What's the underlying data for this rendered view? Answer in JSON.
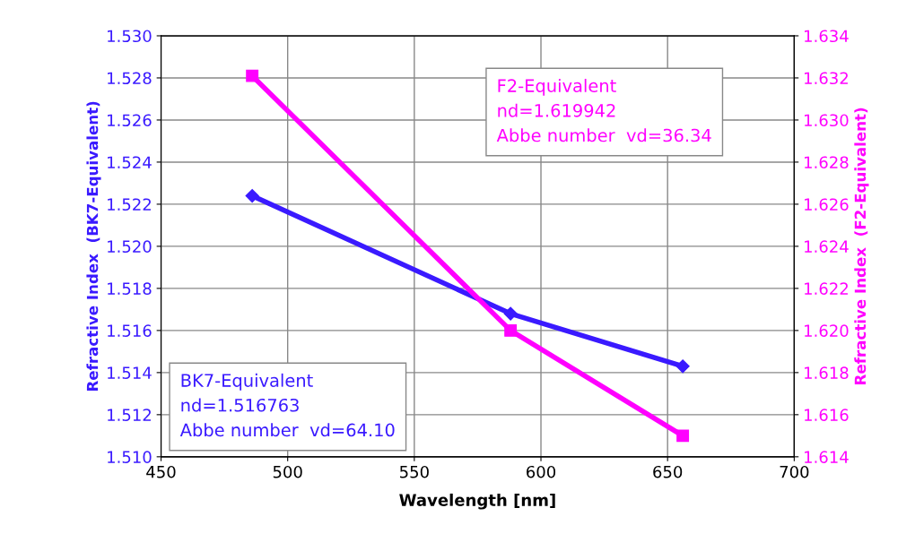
{
  "chart_data": {
    "type": "line",
    "xlabel": "Wavelength [nm]",
    "ylabel": "Refractive Index  (BK7-Equivalent)",
    "y2label": "Refractive Index  (F2-Equivalent)",
    "series": [
      {
        "color": "#3a1aff",
        "marker": "diamond",
        "x": [
          486,
          588,
          656
        ],
        "values": [
          1.5224,
          1.5168,
          1.5143
        ]
      },
      {
        "color": "#ff00ff",
        "marker": "square",
        "axis": "y2",
        "x": [
          486,
          588,
          656
        ],
        "values": [
          1.6321,
          1.62,
          1.615
        ]
      }
    ],
    "xlim": [
      450,
      700
    ],
    "xticks": [
      450,
      500,
      550,
      600,
      650,
      700
    ],
    "ylim": [
      1.51,
      1.53
    ],
    "yticks": [
      {
        "value": 1.51,
        "label": "1.510"
      },
      {
        "value": 1.512,
        "label": "1.512"
      },
      {
        "value": 1.514,
        "label": "1.514"
      },
      {
        "value": 1.516,
        "label": "1.516"
      },
      {
        "value": 1.518,
        "label": "1.518"
      },
      {
        "value": 1.52,
        "label": "1.520"
      },
      {
        "value": 1.522,
        "label": "1.522"
      },
      {
        "value": 1.524,
        "label": "1.524"
      },
      {
        "value": 1.526,
        "label": "1.526"
      },
      {
        "value": 1.528,
        "label": "1.528"
      },
      {
        "value": 1.53,
        "label": "1.530"
      }
    ],
    "y2lim": [
      1.614,
      1.634
    ],
    "y2ticks": [
      1.614,
      1.616,
      1.618,
      {
        "value": 1.62,
        "label": "1.620"
      },
      1.622,
      1.624,
      1.626,
      1.628,
      {
        "value": 1.63,
        "label": "1.630"
      },
      1.632,
      1.634
    ],
    "annotations": [
      "BK7-Equivalent\nnd=1.516763\nAbbe number  vd=64.10",
      "F2-Equivalent\nnd=1.619942\nAbbe number  vd=36.34"
    ],
    "grid": true,
    "legend": false,
    "line_style": "solid"
  }
}
